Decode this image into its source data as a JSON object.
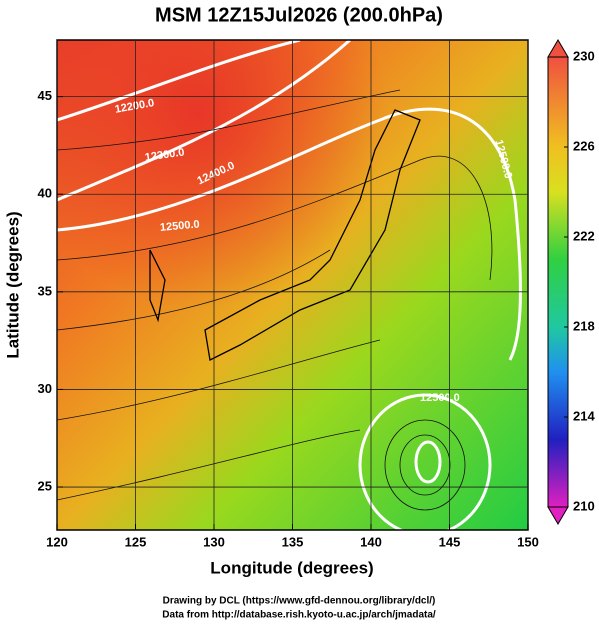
{
  "title": "MSM 12Z15Jul2026 (200.0hPa)",
  "x_axis": {
    "label": "Longitude (degrees)",
    "lim": [
      120,
      150
    ],
    "ticks": [
      120,
      125,
      130,
      135,
      140,
      145,
      150
    ]
  },
  "y_axis": {
    "label": "Latitude  (degrees)",
    "lim": [
      22.8,
      47.9
    ],
    "ticks": [
      25,
      30,
      35,
      40,
      45
    ]
  },
  "colorbar": {
    "lim": [
      210,
      230
    ],
    "ticks": [
      230,
      226,
      222,
      218,
      214,
      210
    ]
  },
  "contour_labels": [
    "12200.0",
    "12300.0",
    "12400.0",
    "12500.0",
    "12500.0",
    "12500.0"
  ],
  "credits": [
    "Drawing by DCL (https://www.gfd-dennou.org/library/dcl/)",
    "Data from http://database.rish.kyoto-u.ac.jp/arch/jmadata/"
  ]
}
